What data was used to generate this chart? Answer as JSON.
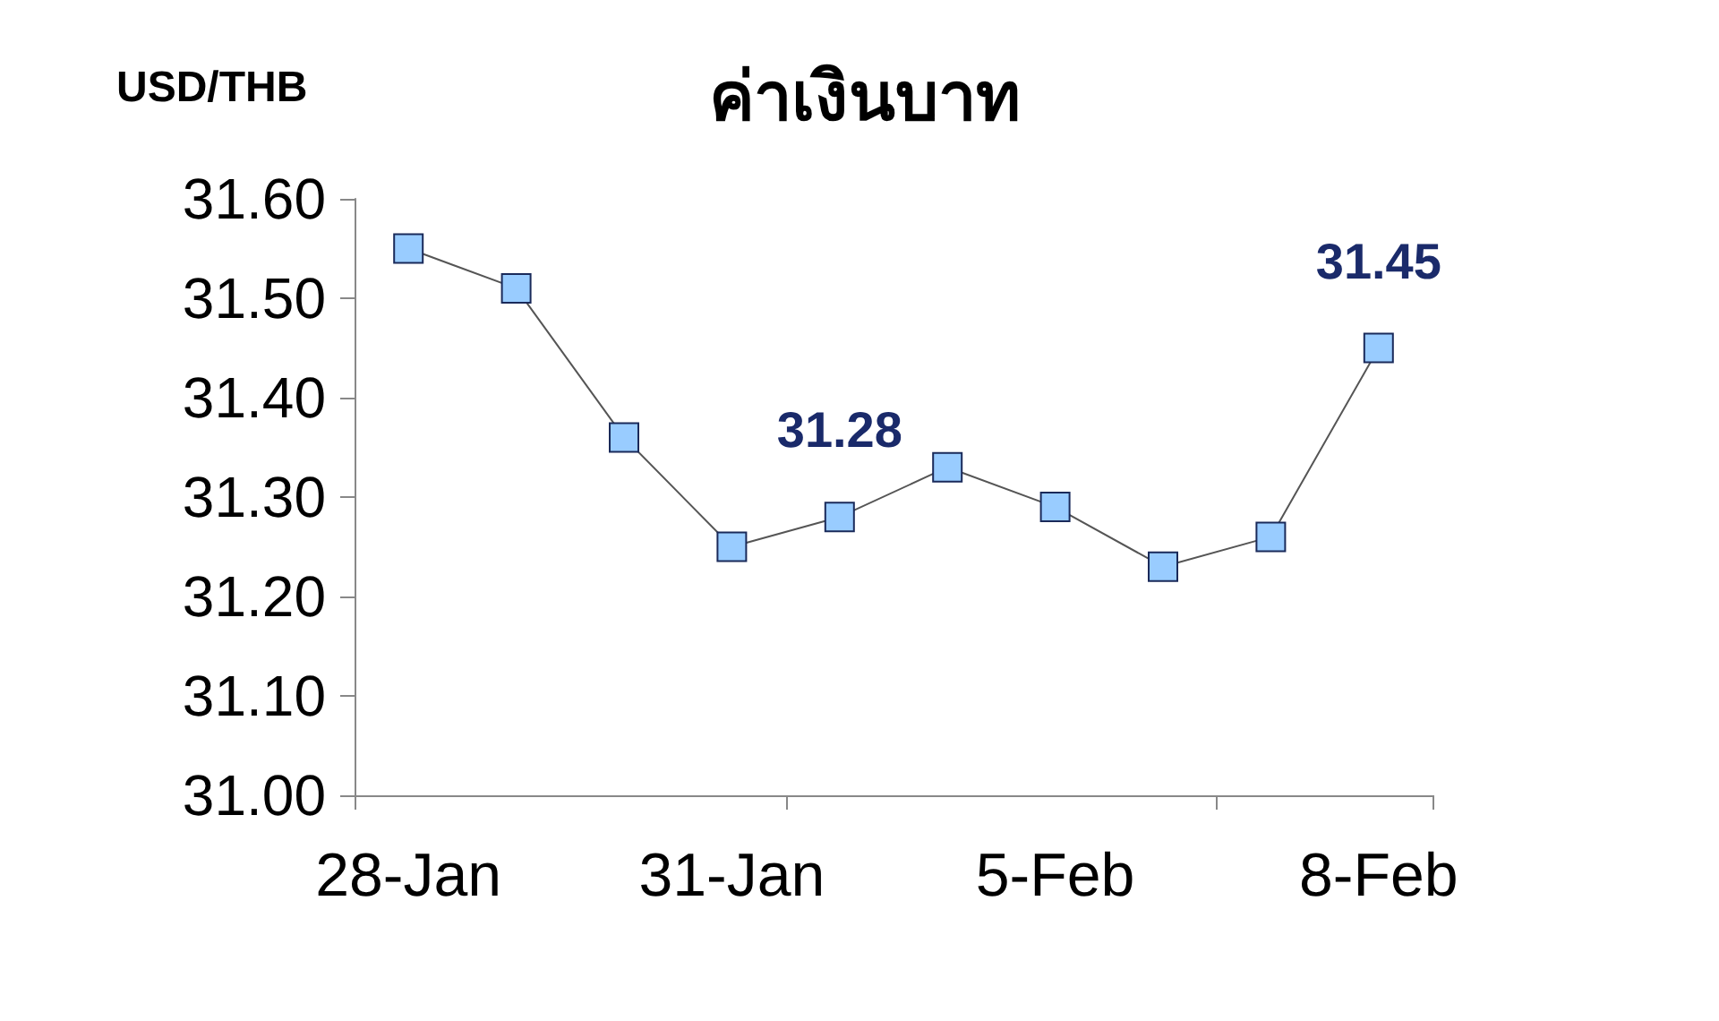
{
  "chart_data": {
    "type": "line",
    "title": "ค่าเงินบาท",
    "ylabel": "USD/THB",
    "categories": [
      "28-Jan",
      null,
      null,
      "31-Jan",
      null,
      null,
      "5-Feb",
      null,
      null,
      "8-Feb"
    ],
    "series": [
      {
        "color": "#99ccff",
        "values": [
          31.55,
          31.51,
          31.36,
          31.25,
          31.28,
          31.33,
          31.29,
          31.23,
          31.26,
          31.45
        ],
        "value_labels": [
          null,
          null,
          null,
          null,
          "31.28",
          null,
          null,
          null,
          null,
          "31.45"
        ]
      }
    ],
    "ylim": [
      31.0,
      31.6
    ],
    "yticks": [
      {
        "value": 31.0,
        "label": "31.00"
      },
      {
        "value": 31.1,
        "label": "31.10"
      },
      {
        "value": 31.2,
        "label": "31.20"
      },
      {
        "value": 31.3,
        "label": "31.30"
      },
      {
        "value": 31.4,
        "label": "31.40"
      },
      {
        "value": 31.5,
        "label": "31.50"
      },
      {
        "value": 31.6,
        "label": "31.60"
      }
    ],
    "grid": false,
    "marker": "square",
    "line_style": "solid"
  }
}
